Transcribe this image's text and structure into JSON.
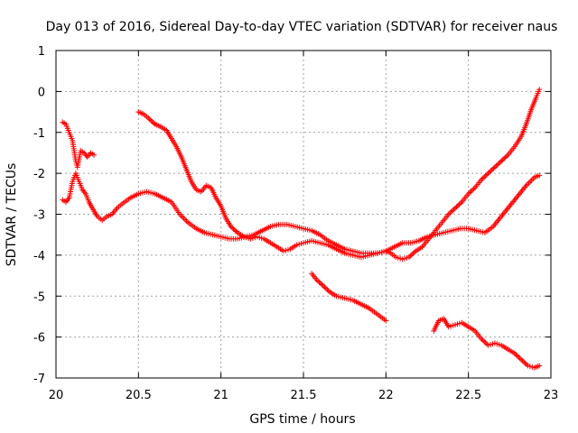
{
  "chart_data": {
    "type": "scatter",
    "title": "Day 013 of 2016, Sidereal Day-to-day VTEC variation (SDTVAR) for receiver naus",
    "xlabel": "GPS time / hours",
    "ylabel": "SDTVAR / TECUs",
    "xlim": [
      20,
      23
    ],
    "ylim": [
      -7,
      1
    ],
    "xticks": [
      "20",
      "20.5",
      "21",
      "21.5",
      "22",
      "22.5",
      "23"
    ],
    "yticks": [
      "1",
      "0",
      "-1",
      "-2",
      "-3",
      "-4",
      "-5",
      "-6",
      "-7"
    ],
    "grid": true,
    "marker": "+",
    "color": "#ff0000",
    "series": [
      {
        "points": [
          [
            20.04,
            -0.75
          ],
          [
            20.06,
            -0.8
          ],
          [
            20.08,
            -1.0
          ],
          [
            20.1,
            -1.2
          ],
          [
            20.12,
            -1.7
          ],
          [
            20.13,
            -1.85
          ],
          [
            20.15,
            -1.45
          ],
          [
            20.17,
            -1.5
          ],
          [
            20.19,
            -1.6
          ],
          [
            20.21,
            -1.5
          ],
          [
            20.23,
            -1.55
          ]
        ]
      },
      {
        "points": [
          [
            20.04,
            -2.65
          ],
          [
            20.06,
            -2.7
          ],
          [
            20.08,
            -2.6
          ],
          [
            20.1,
            -2.2
          ],
          [
            20.12,
            -2.0
          ],
          [
            20.14,
            -2.2
          ],
          [
            20.16,
            -2.4
          ],
          [
            20.18,
            -2.5
          ],
          [
            20.2,
            -2.7
          ],
          [
            20.22,
            -2.85
          ],
          [
            20.25,
            -3.05
          ],
          [
            20.28,
            -3.15
          ],
          [
            20.31,
            -3.05
          ],
          [
            20.34,
            -3.0
          ],
          [
            20.37,
            -2.85
          ],
          [
            20.4,
            -2.75
          ],
          [
            20.45,
            -2.6
          ],
          [
            20.5,
            -2.5
          ],
          [
            20.55,
            -2.45
          ],
          [
            20.6,
            -2.5
          ],
          [
            20.65,
            -2.6
          ],
          [
            20.7,
            -2.7
          ],
          [
            20.75,
            -3.0
          ],
          [
            20.8,
            -3.2
          ],
          [
            20.85,
            -3.35
          ],
          [
            20.9,
            -3.45
          ],
          [
            20.95,
            -3.5
          ],
          [
            21.0,
            -3.55
          ],
          [
            21.05,
            -3.6
          ],
          [
            21.1,
            -3.6
          ],
          [
            21.15,
            -3.55
          ],
          [
            21.2,
            -3.5
          ],
          [
            21.25,
            -3.4
          ],
          [
            21.3,
            -3.3
          ],
          [
            21.35,
            -3.25
          ],
          [
            21.4,
            -3.25
          ],
          [
            21.45,
            -3.3
          ],
          [
            21.5,
            -3.35
          ],
          [
            21.55,
            -3.4
          ],
          [
            21.6,
            -3.5
          ],
          [
            21.65,
            -3.65
          ],
          [
            21.7,
            -3.75
          ],
          [
            21.75,
            -3.85
          ],
          [
            21.8,
            -3.9
          ],
          [
            21.85,
            -3.95
          ],
          [
            21.9,
            -3.95
          ],
          [
            21.95,
            -3.95
          ],
          [
            22.0,
            -3.9
          ],
          [
            22.05,
            -3.8
          ],
          [
            22.1,
            -3.7
          ],
          [
            22.15,
            -3.7
          ],
          [
            22.2,
            -3.65
          ],
          [
            22.25,
            -3.55
          ],
          [
            22.3,
            -3.5
          ],
          [
            22.35,
            -3.45
          ],
          [
            22.4,
            -3.4
          ],
          [
            22.45,
            -3.35
          ],
          [
            22.5,
            -3.35
          ],
          [
            22.55,
            -3.4
          ],
          [
            22.6,
            -3.45
          ],
          [
            22.65,
            -3.3
          ],
          [
            22.7,
            -3.05
          ],
          [
            22.75,
            -2.8
          ],
          [
            22.8,
            -2.55
          ],
          [
            22.85,
            -2.3
          ],
          [
            22.9,
            -2.1
          ],
          [
            22.93,
            -2.05
          ]
        ]
      },
      {
        "points": [
          [
            20.5,
            -0.5
          ],
          [
            20.53,
            -0.55
          ],
          [
            20.56,
            -0.65
          ],
          [
            20.6,
            -0.8
          ],
          [
            20.63,
            -0.85
          ],
          [
            20.67,
            -0.95
          ],
          [
            20.7,
            -1.15
          ],
          [
            20.73,
            -1.35
          ],
          [
            20.76,
            -1.6
          ],
          [
            20.79,
            -1.9
          ],
          [
            20.82,
            -2.2
          ],
          [
            20.85,
            -2.4
          ],
          [
            20.88,
            -2.45
          ],
          [
            20.91,
            -2.3
          ],
          [
            20.94,
            -2.35
          ],
          [
            20.97,
            -2.6
          ],
          [
            21.0,
            -2.8
          ],
          [
            21.03,
            -3.1
          ],
          [
            21.06,
            -3.3
          ],
          [
            21.1,
            -3.45
          ],
          [
            21.14,
            -3.55
          ],
          [
            21.18,
            -3.6
          ],
          [
            21.22,
            -3.55
          ],
          [
            21.26,
            -3.6
          ],
          [
            21.3,
            -3.7
          ],
          [
            21.34,
            -3.8
          ],
          [
            21.38,
            -3.9
          ],
          [
            21.42,
            -3.85
          ],
          [
            21.46,
            -3.75
          ],
          [
            21.5,
            -3.7
          ],
          [
            21.55,
            -3.65
          ],
          [
            21.6,
            -3.7
          ],
          [
            21.65,
            -3.75
          ],
          [
            21.7,
            -3.85
          ],
          [
            21.75,
            -3.95
          ],
          [
            21.8,
            -4.0
          ],
          [
            21.85,
            -4.05
          ],
          [
            21.9,
            -4.0
          ],
          [
            21.95,
            -3.95
          ],
          [
            22.0,
            -3.9
          ],
          [
            22.03,
            -3.95
          ],
          [
            22.06,
            -4.05
          ],
          [
            22.1,
            -4.1
          ],
          [
            22.14,
            -4.05
          ],
          [
            22.18,
            -3.9
          ],
          [
            22.22,
            -3.8
          ],
          [
            22.26,
            -3.6
          ],
          [
            22.3,
            -3.4
          ],
          [
            22.34,
            -3.2
          ],
          [
            22.38,
            -3.0
          ],
          [
            22.42,
            -2.85
          ],
          [
            22.46,
            -2.7
          ],
          [
            22.5,
            -2.5
          ],
          [
            22.54,
            -2.35
          ],
          [
            22.58,
            -2.15
          ],
          [
            22.62,
            -2.0
          ],
          [
            22.66,
            -1.85
          ],
          [
            22.7,
            -1.7
          ],
          [
            22.74,
            -1.55
          ],
          [
            22.78,
            -1.35
          ],
          [
            22.82,
            -1.1
          ],
          [
            22.85,
            -0.8
          ],
          [
            22.88,
            -0.45
          ],
          [
            22.91,
            -0.15
          ],
          [
            22.93,
            0.05
          ]
        ]
      },
      {
        "points": [
          [
            21.55,
            -4.45
          ],
          [
            21.58,
            -4.6
          ],
          [
            21.62,
            -4.75
          ],
          [
            21.66,
            -4.9
          ],
          [
            21.7,
            -5.0
          ],
          [
            21.75,
            -5.05
          ],
          [
            21.8,
            -5.1
          ],
          [
            21.85,
            -5.2
          ],
          [
            21.9,
            -5.3
          ],
          [
            21.95,
            -5.45
          ],
          [
            22.0,
            -5.6
          ]
        ]
      },
      {
        "points": [
          [
            22.29,
            -5.85
          ],
          [
            22.32,
            -5.6
          ],
          [
            22.35,
            -5.55
          ],
          [
            22.38,
            -5.75
          ],
          [
            22.42,
            -5.7
          ],
          [
            22.46,
            -5.65
          ],
          [
            22.5,
            -5.75
          ],
          [
            22.54,
            -5.85
          ],
          [
            22.58,
            -6.05
          ],
          [
            22.62,
            -6.2
          ],
          [
            22.66,
            -6.15
          ],
          [
            22.7,
            -6.2
          ],
          [
            22.74,
            -6.3
          ],
          [
            22.78,
            -6.4
          ],
          [
            22.82,
            -6.55
          ],
          [
            22.86,
            -6.7
          ],
          [
            22.9,
            -6.75
          ],
          [
            22.93,
            -6.7
          ]
        ]
      }
    ]
  }
}
